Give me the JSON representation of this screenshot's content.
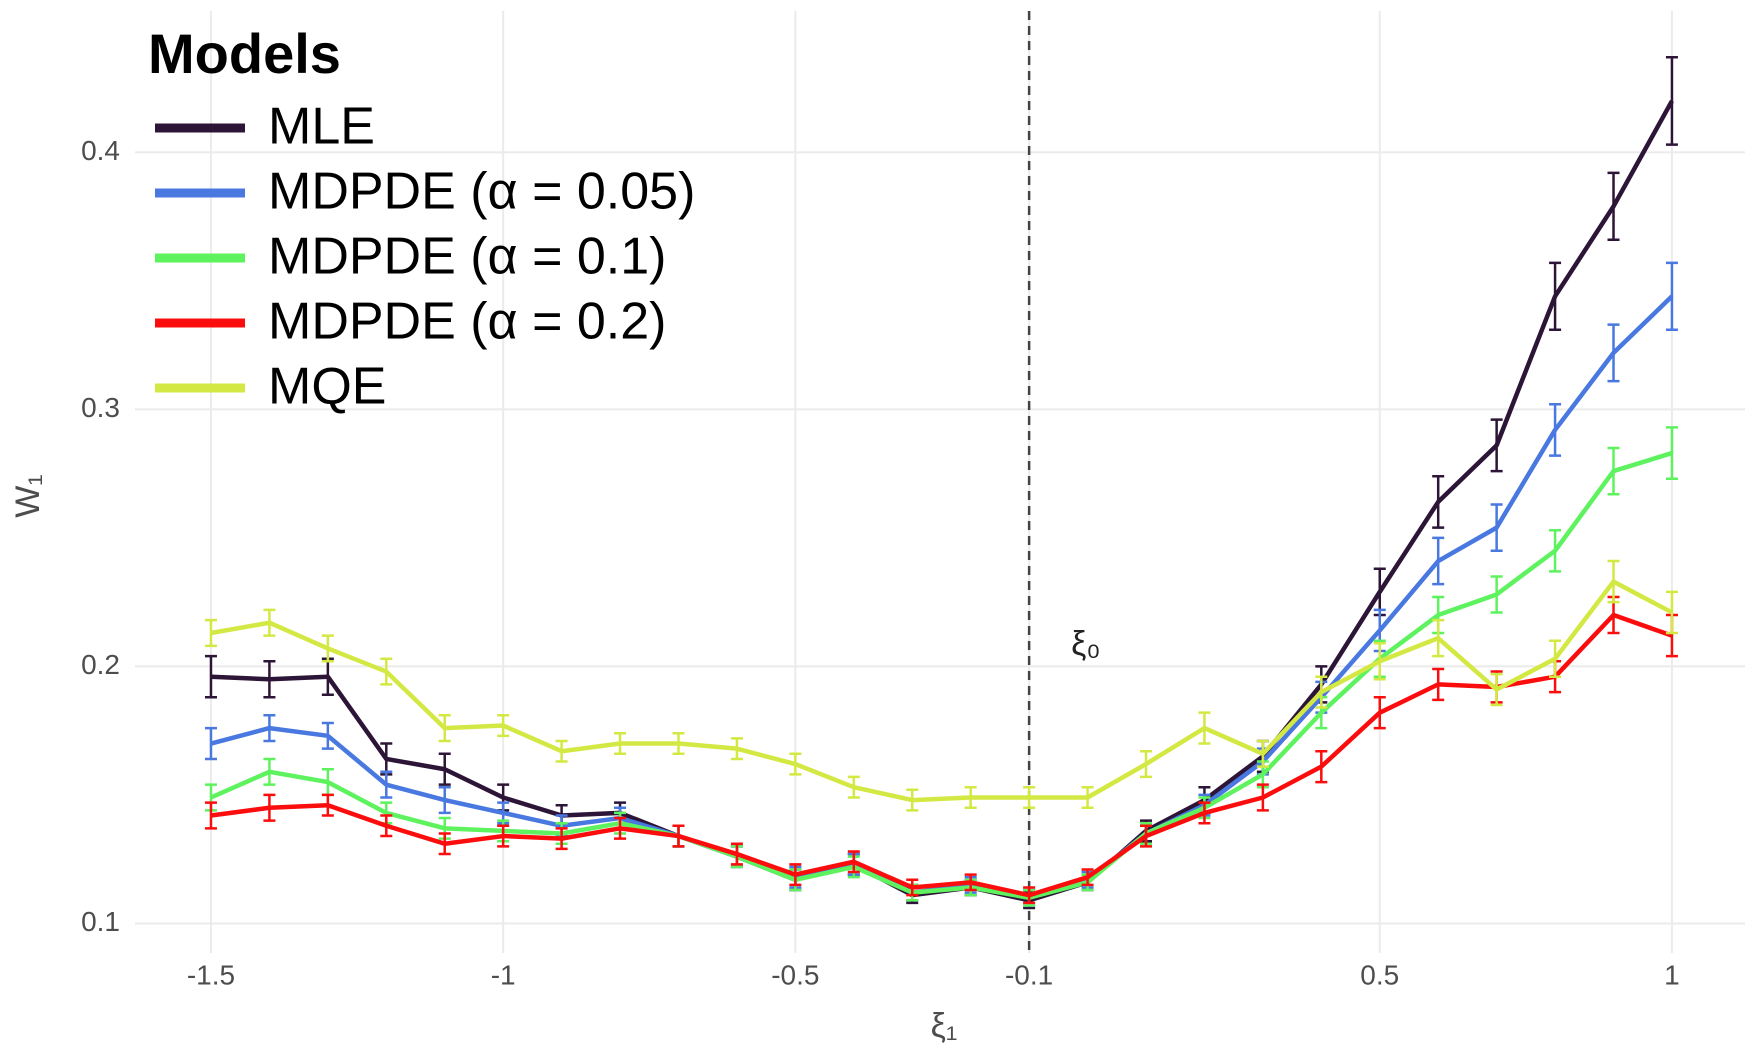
{
  "chart_data": {
    "type": "line",
    "x_label": "ξ₁",
    "y_label": "W₁",
    "legend_title": "Models",
    "legend_position": "top-left",
    "annotation": "ξ₀",
    "vline": -0.1,
    "grid": true,
    "xlim": [
      -1.63,
      1.125
    ],
    "ylim": [
      0.0885,
      0.455
    ],
    "xticks": [
      -1.5,
      -1,
      -0.5,
      -0.1,
      0.5,
      1
    ],
    "yticks": [
      0.1,
      0.2,
      0.3,
      0.4
    ],
    "x": [
      -1.5,
      -1.4,
      -1.3,
      -1.2,
      -1.1,
      -1.0,
      -0.9,
      -0.8,
      -0.7,
      -0.6,
      -0.5,
      -0.4,
      -0.3,
      -0.2,
      -0.1,
      0.0,
      0.1,
      0.2,
      0.3,
      0.4,
      0.5,
      0.6,
      0.7,
      0.8,
      0.9,
      1.0
    ],
    "series": [
      {
        "name": "MLE",
        "color": "#2d1537",
        "values": [
          0.196,
          0.195,
          0.196,
          0.164,
          0.16,
          0.149,
          0.142,
          0.143,
          0.134,
          0.126,
          0.117,
          0.123,
          0.111,
          0.114,
          0.109,
          0.116,
          0.136,
          0.148,
          0.165,
          0.193,
          0.229,
          0.264,
          0.286,
          0.344,
          0.379,
          0.42
        ],
        "errors": [
          0.008,
          0.007,
          0.007,
          0.006,
          0.006,
          0.005,
          0.004,
          0.004,
          0.004,
          0.004,
          0.004,
          0.004,
          0.003,
          0.003,
          0.003,
          0.003,
          0.004,
          0.005,
          0.006,
          0.007,
          0.009,
          0.01,
          0.01,
          0.013,
          0.013,
          0.017
        ]
      },
      {
        "name": "MDPDE (α = 0.05)",
        "color": "#4878e0",
        "values": [
          0.17,
          0.176,
          0.173,
          0.154,
          0.148,
          0.143,
          0.138,
          0.141,
          0.134,
          0.126,
          0.118,
          0.123,
          0.112,
          0.115,
          0.11,
          0.117,
          0.135,
          0.146,
          0.163,
          0.188,
          0.214,
          0.241,
          0.254,
          0.292,
          0.322,
          0.344
        ],
        "errors": [
          0.006,
          0.005,
          0.005,
          0.005,
          0.005,
          0.004,
          0.004,
          0.004,
          0.004,
          0.004,
          0.004,
          0.004,
          0.003,
          0.003,
          0.003,
          0.003,
          0.004,
          0.004,
          0.005,
          0.006,
          0.008,
          0.009,
          0.009,
          0.01,
          0.011,
          0.013
        ]
      },
      {
        "name": "MDPDE (α = 0.1)",
        "color": "#5ef35e",
        "values": [
          0.149,
          0.159,
          0.155,
          0.143,
          0.137,
          0.136,
          0.135,
          0.139,
          0.134,
          0.126,
          0.117,
          0.122,
          0.112,
          0.114,
          0.11,
          0.116,
          0.135,
          0.145,
          0.158,
          0.182,
          0.203,
          0.22,
          0.228,
          0.245,
          0.276,
          0.283
        ],
        "errors": [
          0.005,
          0.005,
          0.005,
          0.004,
          0.004,
          0.004,
          0.004,
          0.004,
          0.004,
          0.004,
          0.004,
          0.004,
          0.003,
          0.003,
          0.003,
          0.003,
          0.004,
          0.004,
          0.005,
          0.006,
          0.007,
          0.007,
          0.007,
          0.008,
          0.009,
          0.01
        ]
      },
      {
        "name": "MDPDE (α = 0.2)",
        "color": "#fb0d0d",
        "values": [
          0.142,
          0.145,
          0.146,
          0.138,
          0.131,
          0.134,
          0.133,
          0.137,
          0.134,
          0.127,
          0.119,
          0.124,
          0.114,
          0.116,
          0.111,
          0.118,
          0.134,
          0.143,
          0.149,
          0.161,
          0.182,
          0.193,
          0.192,
          0.196,
          0.22,
          0.212
        ],
        "errors": [
          0.005,
          0.005,
          0.004,
          0.004,
          0.004,
          0.004,
          0.004,
          0.004,
          0.004,
          0.004,
          0.004,
          0.004,
          0.003,
          0.003,
          0.003,
          0.003,
          0.004,
          0.004,
          0.005,
          0.006,
          0.006,
          0.006,
          0.006,
          0.006,
          0.007,
          0.008
        ]
      },
      {
        "name": "MQE",
        "color": "#d4e843",
        "values": [
          0.213,
          0.217,
          0.207,
          0.198,
          0.176,
          0.177,
          0.167,
          0.17,
          0.17,
          0.168,
          0.162,
          0.153,
          0.148,
          0.149,
          0.149,
          0.149,
          0.162,
          0.176,
          0.166,
          0.19,
          0.202,
          0.211,
          0.191,
          0.203,
          0.233,
          0.221
        ],
        "errors": [
          0.005,
          0.005,
          0.005,
          0.005,
          0.005,
          0.004,
          0.004,
          0.004,
          0.004,
          0.004,
          0.004,
          0.004,
          0.004,
          0.004,
          0.004,
          0.004,
          0.005,
          0.006,
          0.005,
          0.006,
          0.007,
          0.007,
          0.006,
          0.007,
          0.008,
          0.008
        ]
      }
    ]
  }
}
